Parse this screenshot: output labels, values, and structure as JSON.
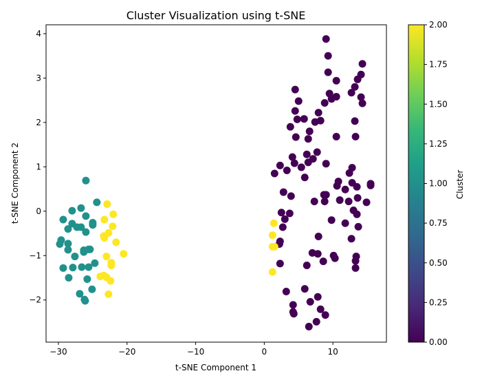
{
  "chart_data": {
    "type": "scatter",
    "title": "Cluster Visualization using t-SNE",
    "xlabel": "t-SNE Component 1",
    "ylabel": "t-SNE Component 2",
    "xlim": [
      -31.8,
      17.8
    ],
    "ylim": [
      -2.95,
      4.2
    ],
    "xticks": [
      -30,
      -20,
      -10,
      0,
      10
    ],
    "yticks": [
      -2,
      -1,
      0,
      1,
      2,
      3,
      4
    ],
    "colorbar": {
      "label": "Cluster",
      "range": [
        0,
        2
      ],
      "ticks": [
        "0.00",
        "0.25",
        "0.50",
        "0.75",
        "1.00",
        "1.25",
        "1.50",
        "1.75",
        "2.00"
      ],
      "colormap": [
        "#440154",
        "#482878",
        "#3e4989",
        "#31688e",
        "#26828e",
        "#1f9e89",
        "#35b779",
        "#6ece58",
        "#b5de2b",
        "#fde725"
      ]
    },
    "grid": false,
    "series": [
      {
        "cluster": 0,
        "color": "#440154",
        "points": [
          [
            9.0,
            3.88
          ],
          [
            9.3,
            3.5
          ],
          [
            14.3,
            3.32
          ],
          [
            9.3,
            3.13
          ],
          [
            14.1,
            3.08
          ],
          [
            10.5,
            2.94
          ],
          [
            13.6,
            2.97
          ],
          [
            13.2,
            2.8
          ],
          [
            4.5,
            2.74
          ],
          [
            9.5,
            2.65
          ],
          [
            12.7,
            2.67
          ],
          [
            10.5,
            2.58
          ],
          [
            9.8,
            2.53
          ],
          [
            14.1,
            2.57
          ],
          [
            14.3,
            2.43
          ],
          [
            8.8,
            2.44
          ],
          [
            5.0,
            2.48
          ],
          [
            4.5,
            2.26
          ],
          [
            7.9,
            2.22
          ],
          [
            5.8,
            2.08
          ],
          [
            4.8,
            2.07
          ],
          [
            7.4,
            2.01
          ],
          [
            8.2,
            2.04
          ],
          [
            13.2,
            2.03
          ],
          [
            3.8,
            1.9
          ],
          [
            6.6,
            1.8
          ],
          [
            4.6,
            1.67
          ],
          [
            6.4,
            1.63
          ],
          [
            10.5,
            1.68
          ],
          [
            13.3,
            1.68
          ],
          [
            7.7,
            1.33
          ],
          [
            6.2,
            1.28
          ],
          [
            4.1,
            1.22
          ],
          [
            7.1,
            1.18
          ],
          [
            6.4,
            1.1
          ],
          [
            4.4,
            1.08
          ],
          [
            9.0,
            1.07
          ],
          [
            2.3,
            1.03
          ],
          [
            12.8,
            0.98
          ],
          [
            5.4,
            0.99
          ],
          [
            3.3,
            0.92
          ],
          [
            12.4,
            0.86
          ],
          [
            1.5,
            0.85
          ],
          [
            5.9,
            0.76
          ],
          [
            10.8,
            0.67
          ],
          [
            12.8,
            0.64
          ],
          [
            15.5,
            0.62
          ],
          [
            10.6,
            0.57
          ],
          [
            13.5,
            0.55
          ],
          [
            15.5,
            0.58
          ],
          [
            11.8,
            0.49
          ],
          [
            2.8,
            0.43
          ],
          [
            3.9,
            0.34
          ],
          [
            8.7,
            0.37
          ],
          [
            9.0,
            0.37
          ],
          [
            13.6,
            0.3
          ],
          [
            11.0,
            0.25
          ],
          [
            12.3,
            0.22
          ],
          [
            14.9,
            0.2
          ],
          [
            7.3,
            0.22
          ],
          [
            8.8,
            0.22
          ],
          [
            2.5,
            -0.03
          ],
          [
            3.7,
            -0.05
          ],
          [
            13.0,
            0.02
          ],
          [
            13.5,
            -0.07
          ],
          [
            3.0,
            -0.18
          ],
          [
            9.8,
            -0.2
          ],
          [
            11.8,
            -0.27
          ],
          [
            2.7,
            -0.36
          ],
          [
            13.7,
            -0.35
          ],
          [
            7.9,
            -0.57
          ],
          [
            12.7,
            -0.62
          ],
          [
            2.3,
            -0.68
          ],
          [
            2.2,
            -0.74
          ],
          [
            7.0,
            -0.94
          ],
          [
            7.8,
            -0.96
          ],
          [
            10.1,
            -1.0
          ],
          [
            13.4,
            -1.02
          ],
          [
            10.3,
            -1.06
          ],
          [
            13.3,
            -1.12
          ],
          [
            8.6,
            -1.13
          ],
          [
            2.3,
            -1.18
          ],
          [
            6.2,
            -1.22
          ],
          [
            13.3,
            -1.28
          ],
          [
            5.9,
            -1.75
          ],
          [
            3.2,
            -1.81
          ],
          [
            7.8,
            -1.93
          ],
          [
            6.7,
            -2.04
          ],
          [
            4.2,
            -2.11
          ],
          [
            8.2,
            -2.21
          ],
          [
            4.2,
            -2.27
          ],
          [
            4.3,
            -2.31
          ],
          [
            8.9,
            -2.34
          ],
          [
            7.6,
            -2.49
          ],
          [
            6.5,
            -2.6
          ]
        ]
      },
      {
        "cluster": 1,
        "color": "#21918c",
        "points": [
          [
            -26.0,
            0.69
          ],
          [
            -24.4,
            0.2
          ],
          [
            -26.7,
            0.07
          ],
          [
            -28.0,
            0.01
          ],
          [
            -26.0,
            -0.11
          ],
          [
            -29.3,
            -0.19
          ],
          [
            -28.0,
            -0.28
          ],
          [
            -25.0,
            -0.26
          ],
          [
            -25.0,
            -0.31
          ],
          [
            -27.3,
            -0.36
          ],
          [
            -26.7,
            -0.36
          ],
          [
            -28.6,
            -0.4
          ],
          [
            -26.0,
            -0.47
          ],
          [
            -29.6,
            -0.65
          ],
          [
            -28.6,
            -0.73
          ],
          [
            -29.8,
            -0.74
          ],
          [
            -25.4,
            -0.86
          ],
          [
            -25.6,
            -0.86
          ],
          [
            -28.6,
            -0.87
          ],
          [
            -26.3,
            -0.88
          ],
          [
            -26.3,
            -0.92
          ],
          [
            -27.6,
            -1.02
          ],
          [
            -24.7,
            -1.17
          ],
          [
            -26.6,
            -1.26
          ],
          [
            -25.6,
            -1.26
          ],
          [
            -27.9,
            -1.27
          ],
          [
            -29.3,
            -1.28
          ],
          [
            -28.5,
            -1.5
          ],
          [
            -25.8,
            -1.53
          ],
          [
            -25.1,
            -1.76
          ],
          [
            -26.9,
            -1.86
          ],
          [
            -26.2,
            -1.99
          ],
          [
            -26.1,
            -2.02
          ]
        ]
      },
      {
        "cluster": 2,
        "color": "#fde725",
        "points": [
          [
            -22.9,
            0.16
          ],
          [
            -22.0,
            -0.07
          ],
          [
            -23.3,
            -0.19
          ],
          [
            -22.1,
            -0.34
          ],
          [
            -22.7,
            -0.49
          ],
          [
            -23.4,
            -0.56
          ],
          [
            -23.3,
            -0.6
          ],
          [
            -21.6,
            -0.7
          ],
          [
            -20.5,
            -0.96
          ],
          [
            -23.0,
            -1.02
          ],
          [
            -22.3,
            -1.16
          ],
          [
            -22.3,
            -1.22
          ],
          [
            -23.4,
            -1.45
          ],
          [
            -23.9,
            -1.47
          ],
          [
            -23.0,
            -1.49
          ],
          [
            -22.4,
            -1.57
          ],
          [
            -22.7,
            -1.87
          ],
          [
            1.4,
            -0.27
          ],
          [
            1.2,
            -0.54
          ],
          [
            1.2,
            -0.8
          ],
          [
            1.5,
            -0.8
          ],
          [
            1.2,
            -1.37
          ]
        ]
      }
    ]
  }
}
